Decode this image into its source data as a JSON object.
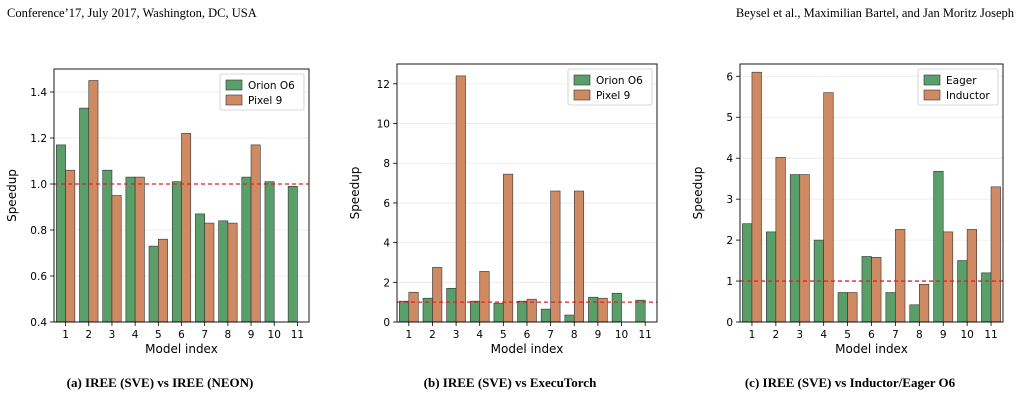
{
  "header": {
    "left": "Conference’17, July 2017, Washington, DC, USA",
    "right": "Beysel et al., Maximilian Bartel, and Jan Moritz Joseph"
  },
  "colors": {
    "green": "#5a9e6a",
    "orange": "#cf8a63",
    "reference_line": "#d62728"
  },
  "chart_data": [
    {
      "type": "bar",
      "caption": "(a) IREE (SVE) vs IREE (NEON)",
      "xlabel": "Model index",
      "ylabel": "Speedup",
      "categories": [
        "1",
        "2",
        "3",
        "4",
        "5",
        "6",
        "7",
        "8",
        "9",
        "10",
        "11"
      ],
      "ylim": [
        0.4,
        1.5
      ],
      "yticks": [
        "0.4",
        "0.6",
        "0.8",
        "1.0",
        "1.2",
        "1.4"
      ],
      "reference_line": 1.0,
      "legend_position": "top-right",
      "series": [
        {
          "name": "Orion O6",
          "values": [
            1.17,
            1.33,
            1.06,
            1.03,
            0.73,
            1.01,
            0.87,
            0.84,
            1.03,
            1.01,
            0.99
          ]
        },
        {
          "name": "Pixel 9",
          "values": [
            1.06,
            1.45,
            0.95,
            1.03,
            0.76,
            1.22,
            0.83,
            0.83,
            1.17,
            null,
            null
          ]
        }
      ]
    },
    {
      "type": "bar",
      "caption": "(b) IREE (SVE) vs ExecuTorch",
      "xlabel": "Model index",
      "ylabel": "Speedup",
      "categories": [
        "1",
        "2",
        "3",
        "4",
        "5",
        "6",
        "7",
        "8",
        "9",
        "10",
        "11"
      ],
      "ylim": [
        0,
        13
      ],
      "yticks": [
        "0",
        "2",
        "4",
        "6",
        "8",
        "10",
        "12"
      ],
      "reference_line": 1.0,
      "legend_position": "top-right",
      "series": [
        {
          "name": "Orion O6",
          "values": [
            1.05,
            1.2,
            1.7,
            1.05,
            0.95,
            1.05,
            0.65,
            0.35,
            1.25,
            1.45,
            1.1
          ]
        },
        {
          "name": "Pixel 9",
          "values": [
            1.5,
            2.75,
            12.4,
            2.55,
            7.45,
            1.15,
            6.6,
            6.6,
            1.2,
            null,
            null
          ]
        }
      ]
    },
    {
      "type": "bar",
      "caption": "(c) IREE (SVE) vs Inductor/Eager O6",
      "xlabel": "Model index",
      "ylabel": "Speedup",
      "categories": [
        "1",
        "2",
        "3",
        "4",
        "5",
        "6",
        "7",
        "8",
        "9",
        "10",
        "11"
      ],
      "ylim": [
        0,
        6.3
      ],
      "yticks": [
        "0",
        "1",
        "2",
        "3",
        "4",
        "5",
        "6"
      ],
      "reference_line": 1.0,
      "legend_position": "top-right",
      "series": [
        {
          "name": "Eager",
          "values": [
            2.4,
            2.2,
            3.6,
            2.0,
            0.72,
            1.6,
            0.72,
            0.42,
            3.68,
            1.5,
            1.2
          ]
        },
        {
          "name": "Inductor",
          "values": [
            6.1,
            4.02,
            3.6,
            5.6,
            0.72,
            1.58,
            2.26,
            0.92,
            2.2,
            2.26,
            3.3
          ]
        }
      ]
    }
  ]
}
